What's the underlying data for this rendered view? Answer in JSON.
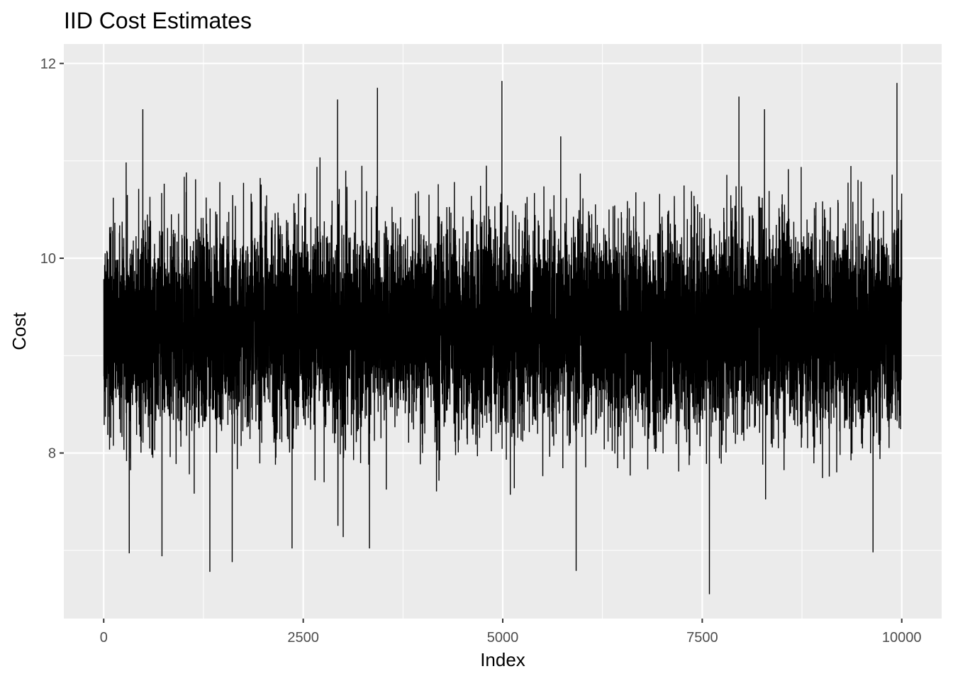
{
  "chart_data": {
    "type": "line",
    "title": "IID Cost Estimates",
    "xlabel": "Index",
    "ylabel": "Cost",
    "xlim": [
      -500,
      10500
    ],
    "ylim": [
      6.3,
      12.2
    ],
    "x_ticks": [
      0,
      2500,
      5000,
      7500,
      10000
    ],
    "x_tick_labels": [
      "0",
      "2500",
      "5000",
      "7500",
      "10000"
    ],
    "y_ticks": [
      8,
      10,
      12
    ],
    "y_tick_labels": [
      "8",
      "10",
      "12"
    ],
    "grid": true,
    "legend": "none",
    "series": [
      {
        "n": 10000,
        "x_range": [
          1,
          10000
        ],
        "center": 9.3,
        "typical_band": [
          8.2,
          10.5
        ],
        "max": 11.82,
        "min": 6.55,
        "extremes": [
          {
            "x": 4990,
            "y": 11.82
          },
          {
            "x": 9940,
            "y": 11.8
          },
          {
            "x": 3430,
            "y": 11.75
          },
          {
            "x": 2930,
            "y": 11.63
          },
          {
            "x": 7960,
            "y": 11.66
          },
          {
            "x": 490,
            "y": 11.53
          },
          {
            "x": 8280,
            "y": 11.53
          },
          {
            "x": 7590,
            "y": 6.55
          },
          {
            "x": 1330,
            "y": 6.78
          },
          {
            "x": 5920,
            "y": 6.79
          },
          {
            "x": 1610,
            "y": 6.88
          },
          {
            "x": 320,
            "y": 6.97
          },
          {
            "x": 730,
            "y": 6.94
          },
          {
            "x": 9640,
            "y": 6.98
          },
          {
            "x": 2360,
            "y": 7.02
          },
          {
            "x": 3330,
            "y": 7.02
          }
        ]
      }
    ],
    "colors": {
      "panel": "#ebebeb",
      "grid": "#ffffff",
      "line": "#000000",
      "tick_text": "#4d4d4d",
      "tick_mark": "#333333"
    }
  }
}
